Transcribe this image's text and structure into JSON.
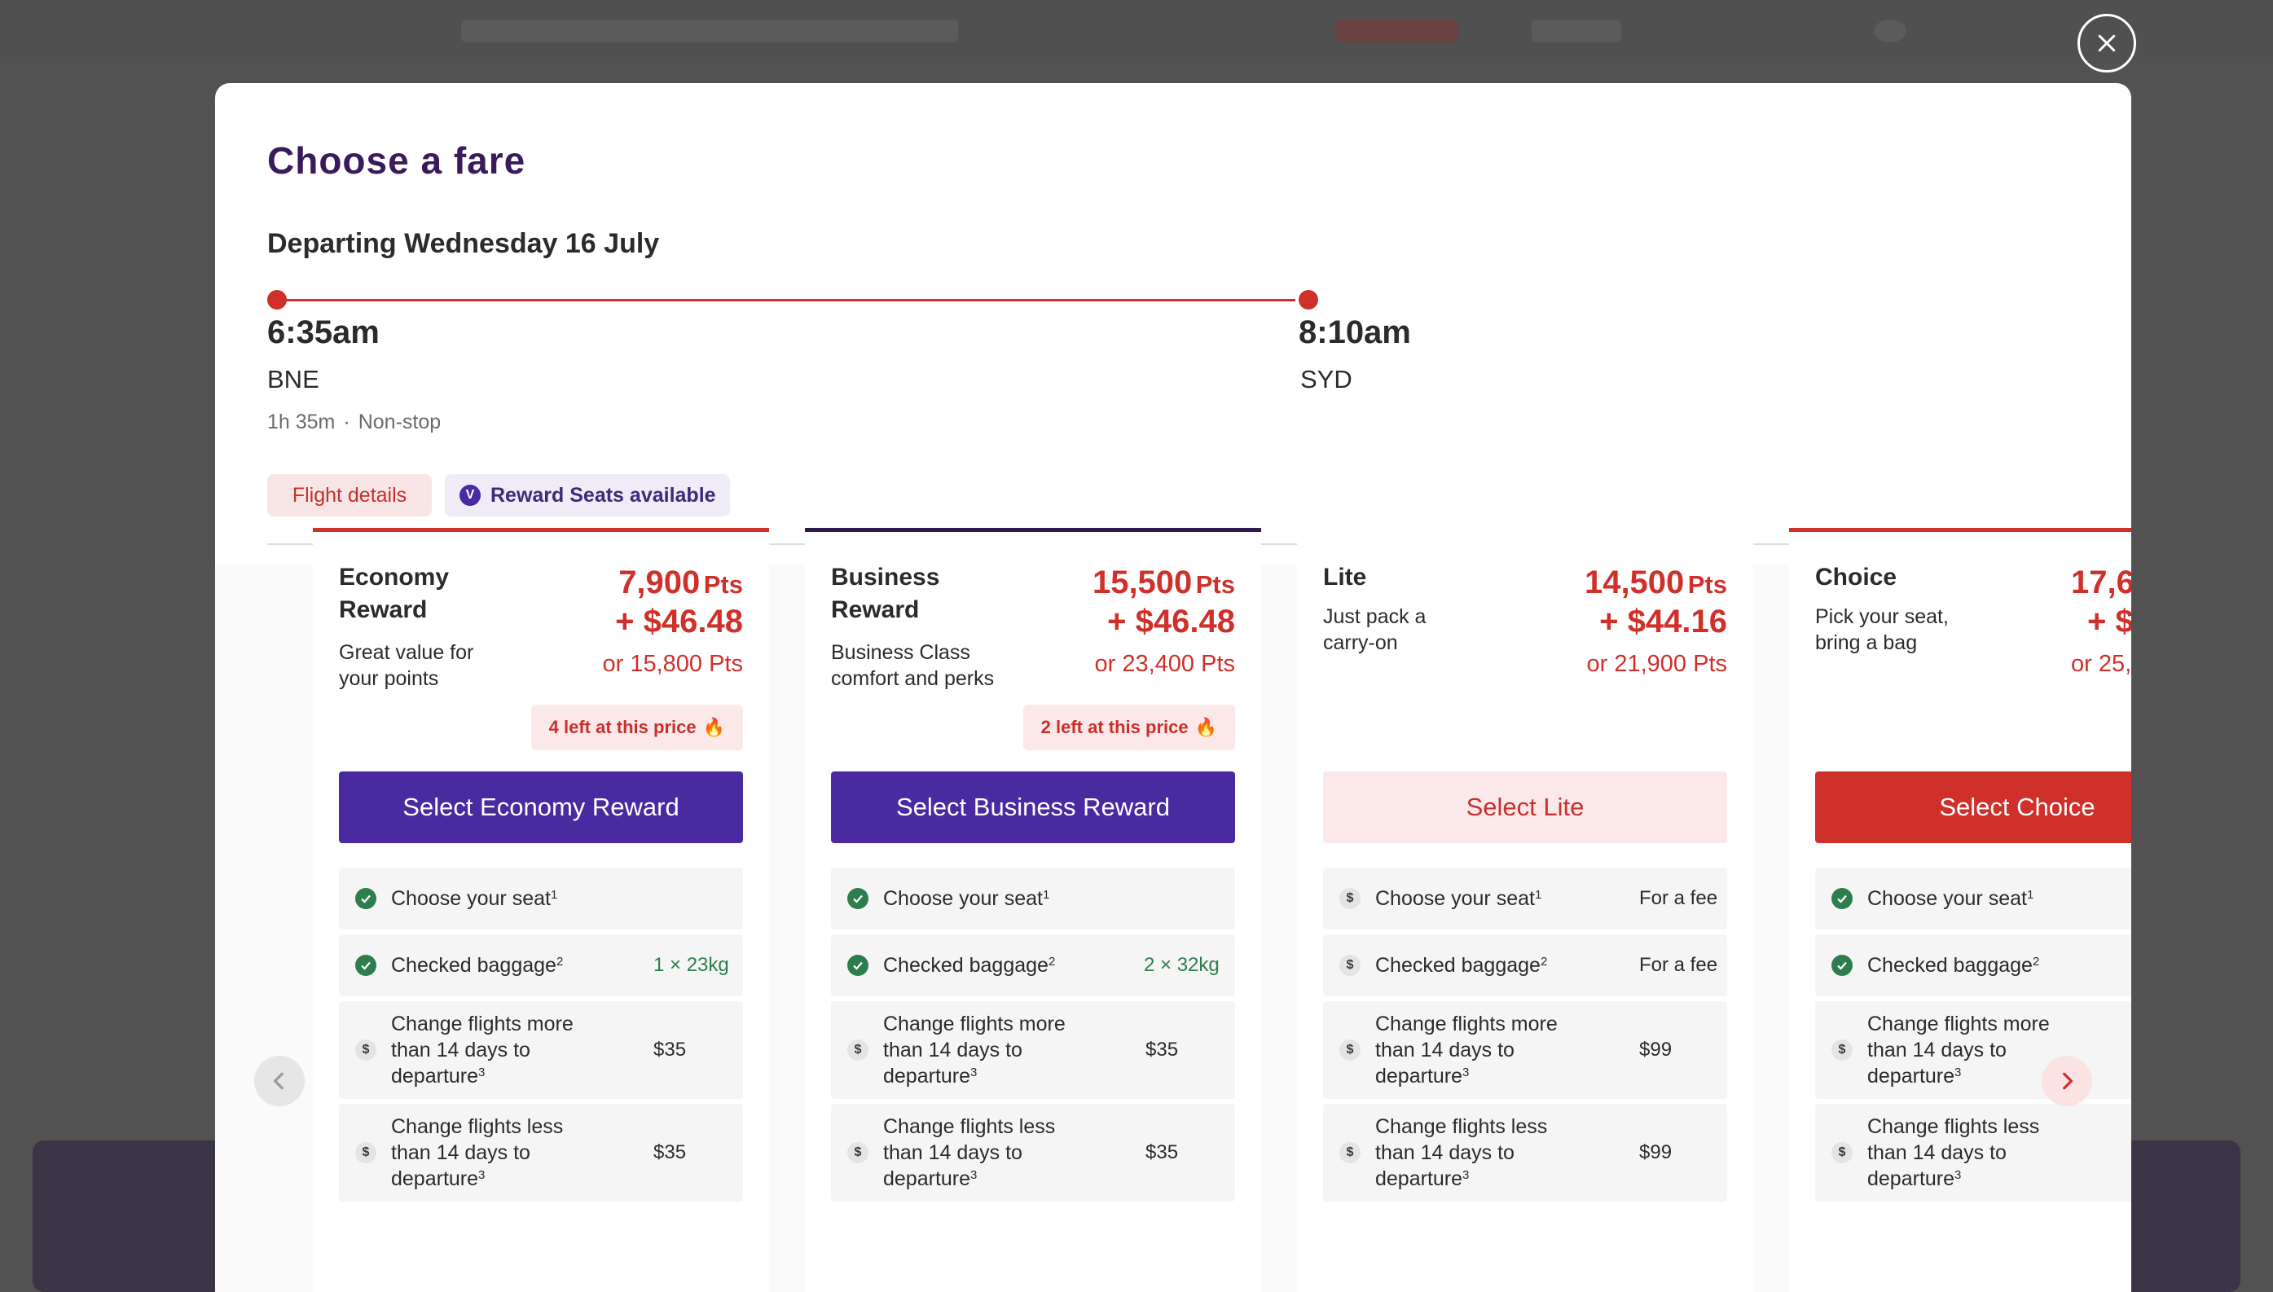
{
  "modal": {
    "title": "Choose a fare",
    "departing": "Departing Wednesday 16 July",
    "depart_time": "6:35am",
    "depart_airport": "BNE",
    "arrive_time": "8:10am",
    "arrive_airport": "SYD",
    "duration": "1h 35m",
    "duration_sep": "·",
    "stops": "Non-stop",
    "flight_details_label": "Flight details",
    "reward_seats_label": "Reward Seats available",
    "reward_badge_letter": "V"
  },
  "fares": [
    {
      "name": "Economy Reward",
      "desc": "Great value for your points",
      "pts": "7,900",
      "pts_unit": "Pts",
      "cash": "+ $46.48",
      "alt": "or 15,800 Pts",
      "left": "4 left at this price",
      "button": "Select Economy Reward",
      "features": [
        {
          "label": "Choose your seat",
          "sup": "1",
          "value": ""
        },
        {
          "label": "Checked baggage",
          "sup": "2",
          "value": "1 × 23kg"
        },
        {
          "label": "Change flights more than 14 days to departure",
          "sup": "3",
          "value": "$35"
        },
        {
          "label": "Change flights less than 14 days to departure",
          "sup": "3",
          "value": "$35"
        }
      ]
    },
    {
      "name": "Business Reward",
      "desc": "Business Class comfort and perks",
      "pts": "15,500",
      "pts_unit": "Pts",
      "cash": "+ $46.48",
      "alt": "or 23,400 Pts",
      "left": "2 left at this price",
      "button": "Select Business Reward",
      "features": [
        {
          "label": "Choose your seat",
          "sup": "1",
          "value": ""
        },
        {
          "label": "Checked baggage",
          "sup": "2",
          "value": "2 × 32kg"
        },
        {
          "label": "Change flights more than 14 days to departure",
          "sup": "3",
          "value": "$35"
        },
        {
          "label": "Change flights less than 14 days to departure",
          "sup": "3",
          "value": "$35"
        }
      ]
    },
    {
      "name": "Lite",
      "desc": "Just pack a carry-on",
      "pts": "14,500",
      "pts_unit": "Pts",
      "cash": "+ $44.16",
      "alt": "or 21,900 Pts",
      "button": "Select Lite",
      "features": [
        {
          "label": "Choose your seat",
          "sup": "1",
          "value": "For a fee"
        },
        {
          "label": "Checked baggage",
          "sup": "2",
          "value": "For a fee"
        },
        {
          "label": "Change flights more than 14 days to departure",
          "sup": "3",
          "value": "$99"
        },
        {
          "label": "Change flights less than 14 days to departure",
          "sup": "3",
          "value": "$99"
        }
      ]
    },
    {
      "name": "Choice",
      "desc": "Pick your seat, bring a bag",
      "pts": "17,6",
      "cash": "+ $",
      "alt": "or 25,",
      "button": "Select Choice",
      "features": [
        {
          "label": "Choose your seat",
          "sup": "1"
        },
        {
          "label": "Checked baggage",
          "sup": "2"
        },
        {
          "label": "Change flights more than 14 days to departure",
          "sup": "3"
        },
        {
          "label": "Change flights less than 14 days to departure",
          "sup": "3"
        }
      ]
    }
  ],
  "icons": {
    "close": "close-icon",
    "prev": "chevron-left-icon",
    "next": "chevron-right-icon",
    "check": "check-circle-icon",
    "dollar": "dollar-circle-icon",
    "fire": "fire-icon"
  },
  "colors": {
    "brand_red": "#d0302a",
    "brand_purple": "#4a2aa0",
    "title_purple": "#3a1a5c",
    "success_green": "#2e7d4f"
  }
}
